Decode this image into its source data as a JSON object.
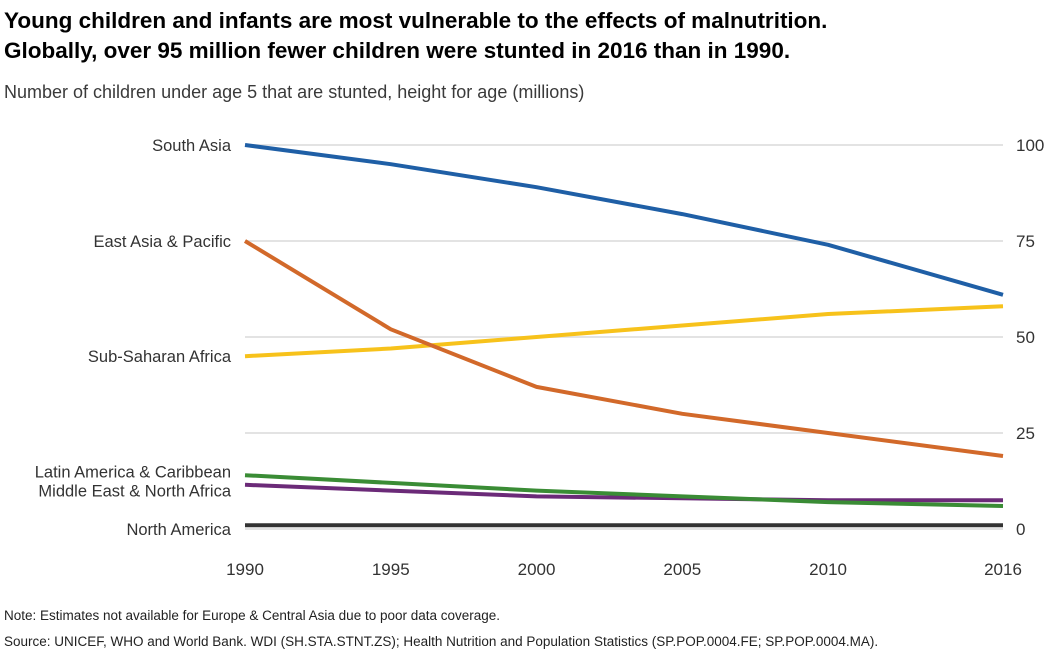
{
  "header": {
    "title_line1": "Young children and infants are most vulnerable to the effects of malnutrition.",
    "title_line2": "Globally, over 95 million fewer children were stunted in 2016 than in 1990.",
    "subtitle": "Number of children under age 5 that are stunted, height for age (millions)"
  },
  "footer": {
    "note": "Note: Estimates not available for Europe & Central Asia due to poor data coverage.",
    "source": "Source: UNICEF, WHO and World Bank. WDI (SH.STA.STNT.ZS); Health Nutrition and Population Statistics (SP.POP.0004.FE; SP.POP.0004.MA)."
  },
  "chart_data": {
    "type": "line",
    "x": [
      1990,
      1995,
      2000,
      2005,
      2010,
      2016
    ],
    "x_ticks": [
      "1990",
      "1995",
      "2000",
      "2005",
      "2010",
      "2016"
    ],
    "y_ticks": [
      "0",
      "25",
      "50",
      "75",
      "100"
    ],
    "y_tick_values": [
      0,
      25,
      50,
      75,
      100
    ],
    "ylim": [
      0,
      100
    ],
    "xlim": [
      1990,
      2016
    ],
    "grid": true,
    "legend": "left-inline-labels",
    "series": [
      {
        "name": "South Asia",
        "color": "#1f5fa6",
        "label_y": 100,
        "values": [
          100,
          95,
          89,
          82,
          74,
          61
        ]
      },
      {
        "name": "East Asia & Pacific",
        "color": "#d2692a",
        "label_y": 75,
        "values": [
          75,
          52,
          37,
          30,
          25,
          19
        ]
      },
      {
        "name": "Sub-Saharan Africa",
        "color": "#f7c21b",
        "label_y": 45,
        "values": [
          45,
          47,
          50,
          53,
          56,
          58
        ]
      },
      {
        "name": "Latin America & Caribbean",
        "color": "#3a8c35",
        "label_y": 15,
        "values": [
          14,
          12,
          10,
          8.5,
          7,
          6
        ]
      },
      {
        "name": "Middle East & North Africa",
        "color": "#6b2a78",
        "label_y": 10,
        "values": [
          11.5,
          10,
          8.5,
          8,
          7.5,
          7.5
        ]
      },
      {
        "name": "North America",
        "color": "#333333",
        "label_y": 0,
        "values": [
          1,
          1,
          1,
          1,
          1,
          1
        ]
      }
    ]
  }
}
